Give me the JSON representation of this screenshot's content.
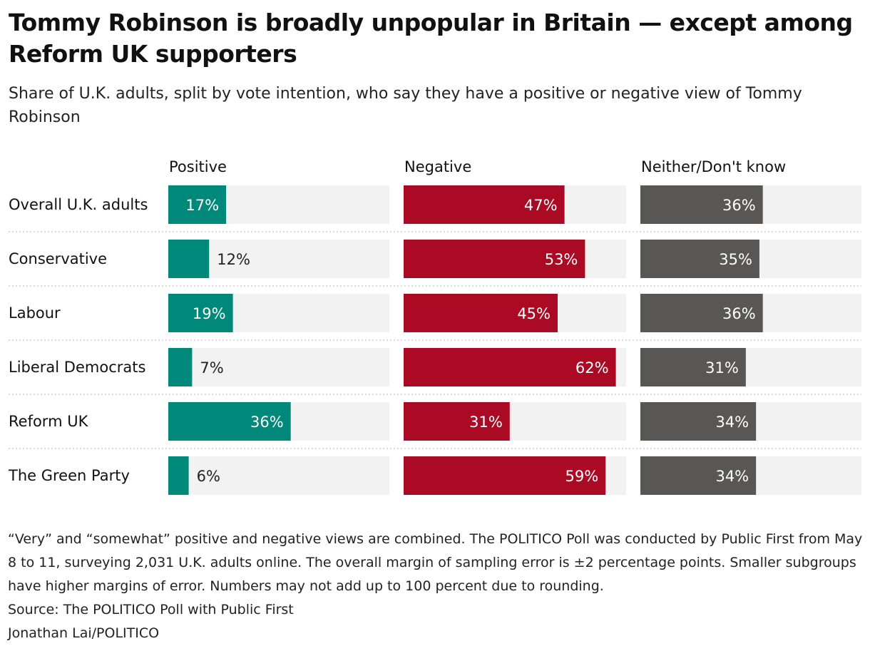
{
  "title": "Tommy Robinson is broadly unpopular in Britain — except among Reform UK supporters",
  "subtitle": "Share of U.K. adults, split by vote intention, who say they have a positive or negative view of Tommy Robinson",
  "chart_data": {
    "type": "bar",
    "categories": [
      "Overall U.K. adults",
      "Conservative",
      "Labour",
      "Liberal Democrats",
      "Reform UK",
      "The Green Party"
    ],
    "series": [
      {
        "name": "Positive",
        "values": [
          17,
          12,
          19,
          7,
          36,
          6
        ],
        "color": "#00897b"
      },
      {
        "name": "Negative",
        "values": [
          47,
          53,
          45,
          62,
          31,
          59
        ],
        "color": "#ab0a25"
      },
      {
        "name": "Neither/Don't know",
        "values": [
          36,
          35,
          36,
          31,
          34,
          34
        ],
        "color": "#585756"
      }
    ],
    "value_suffix": "%",
    "track_color": "#f2f2f2",
    "xlim": [
      0,
      65
    ]
  },
  "notes": {
    "methodology": "“Very” and “somewhat” positive and negative views are combined. The POLITICO Poll was conducted by Public First from May 8 to 11, surveying 2,031 U.K. adults online. The overall margin of sampling error is ±2 percentage points. Smaller subgroups have higher margins of error. Numbers may not add up to 100 percent due to rounding.",
    "source": "Source: The POLITICO Poll with Public First",
    "credit": "Jonathan Lai/POLITICO"
  }
}
